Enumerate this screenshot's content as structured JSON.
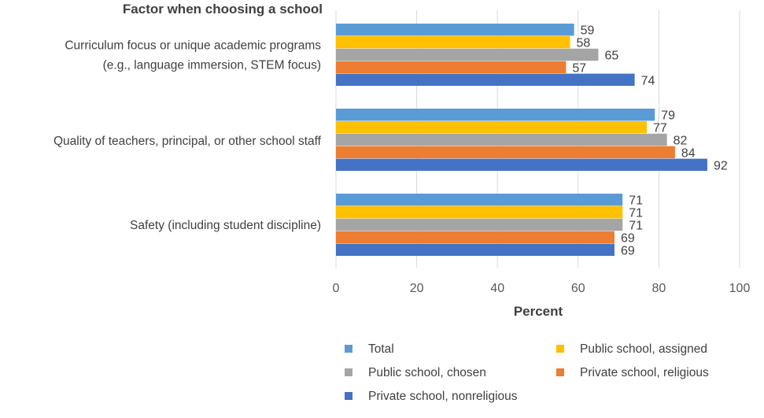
{
  "chart_data": {
    "type": "bar",
    "orientation": "horizontal",
    "title": "",
    "ytitle": "Factor when choosing a school",
    "xlabel": "Percent",
    "xlim": [
      0,
      100
    ],
    "xticks": [
      0,
      20,
      40,
      60,
      80,
      100
    ],
    "grid": true,
    "legend_position": "bottom",
    "categories": [
      [
        "Curriculum focus or unique academic programs",
        "(e.g., language immersion, STEM focus)"
      ],
      [
        "Quality of teachers, principal, or other school staff"
      ],
      [
        "Safety (including student discipline)"
      ]
    ],
    "series": [
      {
        "name": "Total",
        "color": "#5B9BD5",
        "values": [
          59,
          79,
          71
        ]
      },
      {
        "name": "Public school, assigned",
        "color": "#FFC000",
        "values": [
          58,
          77,
          71
        ]
      },
      {
        "name": "Public school, chosen",
        "color": "#A5A5A5",
        "values": [
          65,
          82,
          71
        ]
      },
      {
        "name": "Private school, religious",
        "color": "#ED7D31",
        "values": [
          57,
          84,
          69
        ]
      },
      {
        "name": "Private school, nonreligious",
        "color": "#4472C4",
        "values": [
          74,
          92,
          69
        ]
      }
    ]
  }
}
